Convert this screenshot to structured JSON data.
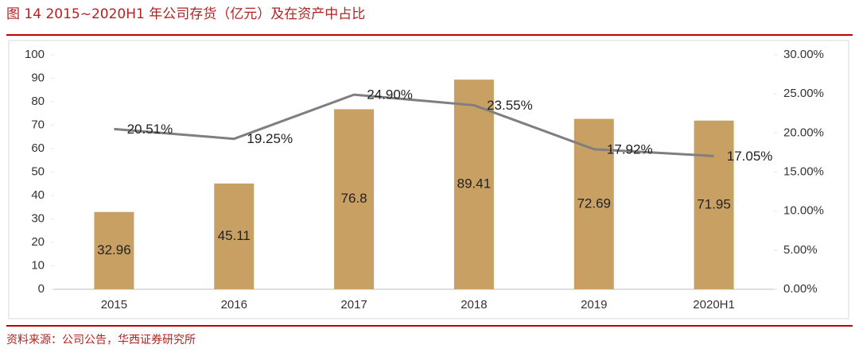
{
  "chart_data": {
    "type": "bar-line",
    "title": "图 14   2015~2020H1 年公司存货（亿元）及在资产中占比",
    "source": "资料来源：公司公告，华西证券研究所",
    "categories": [
      "2015",
      "2016",
      "2017",
      "2018",
      "2019",
      "2020H1"
    ],
    "series": [
      {
        "type": "bar",
        "color": "#c9a063",
        "values": [
          32.96,
          45.11,
          76.8,
          89.41,
          72.69,
          71.95
        ]
      },
      {
        "type": "line",
        "axis": "y2",
        "color": "#7f7f7f",
        "values": [
          20.51,
          19.25,
          24.9,
          23.55,
          17.92,
          17.05
        ],
        "value_labels": [
          "20.51%",
          "19.25%",
          "24.90%",
          "23.55%",
          "17.92%",
          "17.05%"
        ]
      }
    ],
    "ylim": [
      0,
      100
    ],
    "yticks": [
      0,
      10,
      20,
      30,
      40,
      50,
      60,
      70,
      80,
      90,
      100
    ],
    "y2lim": [
      0,
      30
    ],
    "y2ticks": [
      {
        "value": 0,
        "label": "0.00%"
      },
      {
        "value": 5,
        "label": "5.00%"
      },
      {
        "value": 10,
        "label": "10.00%"
      },
      {
        "value": 15,
        "label": "15.00%"
      },
      {
        "value": 20,
        "label": "20.00%"
      },
      {
        "value": 25,
        "label": "25.00%"
      },
      {
        "value": 30,
        "label": "30.00%"
      }
    ],
    "grid": false
  }
}
